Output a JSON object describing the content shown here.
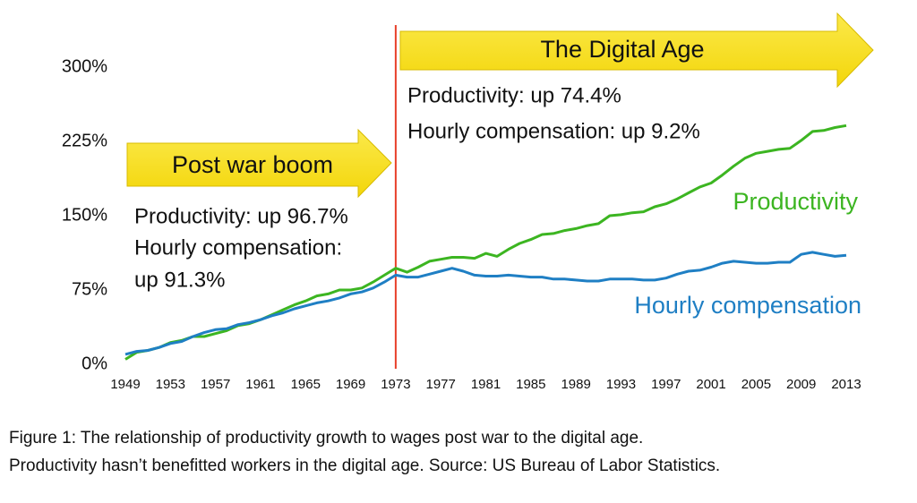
{
  "chart_data": {
    "type": "line",
    "x": [
      1949,
      1950,
      1951,
      1952,
      1953,
      1954,
      1955,
      1956,
      1957,
      1958,
      1959,
      1960,
      1961,
      1962,
      1963,
      1964,
      1965,
      1966,
      1967,
      1968,
      1969,
      1970,
      1971,
      1972,
      1973,
      1974,
      1975,
      1976,
      1977,
      1978,
      1979,
      1980,
      1981,
      1982,
      1983,
      1984,
      1985,
      1986,
      1987,
      1988,
      1989,
      1990,
      1991,
      1992,
      1993,
      1994,
      1995,
      1996,
      1997,
      1998,
      1999,
      2000,
      2001,
      2002,
      2003,
      2004,
      2005,
      2006,
      2007,
      2008,
      2009,
      2010,
      2011,
      2012,
      2013
    ],
    "series": [
      {
        "name": "Productivity",
        "color": "#3cb521",
        "values": [
          5,
          12,
          14,
          17,
          22,
          24,
          28,
          28,
          31,
          34,
          39,
          41,
          45,
          50,
          55,
          60,
          64,
          69,
          71,
          75,
          75,
          77,
          83,
          90,
          97,
          93,
          98,
          104,
          106,
          108,
          108,
          107,
          112,
          109,
          116,
          122,
          126,
          131,
          132,
          135,
          137,
          140,
          142,
          150,
          151,
          153,
          154,
          159,
          162,
          167,
          173,
          179,
          183,
          191,
          200,
          208,
          213,
          215,
          217,
          218,
          226,
          235,
          236,
          239,
          241
        ]
      },
      {
        "name": "Hourly compensation",
        "color": "#1f7fc4",
        "values": [
          10,
          13,
          14,
          17,
          21,
          23,
          28,
          32,
          35,
          36,
          40,
          42,
          45,
          49,
          52,
          56,
          59,
          62,
          64,
          67,
          71,
          73,
          77,
          83,
          90,
          88,
          88,
          91,
          94,
          97,
          94,
          90,
          89,
          89,
          90,
          89,
          88,
          88,
          86,
          86,
          85,
          84,
          84,
          86,
          86,
          86,
          85,
          85,
          87,
          91,
          94,
          95,
          98,
          102,
          104,
          103,
          102,
          102,
          103,
          103,
          111,
          113,
          111,
          109,
          110
        ]
      }
    ],
    "xlim": [
      1949,
      2013
    ],
    "xticks": [
      1949,
      1953,
      1957,
      1961,
      1965,
      1969,
      1973,
      1977,
      1981,
      1985,
      1989,
      1993,
      1997,
      2001,
      2005,
      2009,
      2013
    ],
    "ylim": [
      0,
      300
    ],
    "yticks": [
      {
        "value": 0,
        "label": "0%"
      },
      {
        "value": 75,
        "label": "75%"
      },
      {
        "value": 150,
        "label": "150%"
      },
      {
        "value": 225,
        "label": "225%"
      },
      {
        "value": 300,
        "label": "300%"
      }
    ],
    "vline": {
      "x": 1973,
      "color": "#e8402a"
    },
    "eras": [
      {
        "label": "Post war boom",
        "lines": [
          "Productivity: up 96.7%",
          "Hourly compensation:",
          "up 91.3%"
        ]
      },
      {
        "label": "The Digital Age",
        "lines": [
          "Productivity: up 74.4%",
          "Hourly compensation: up 9.2%"
        ]
      }
    ],
    "caption": [
      "Figure 1: The relationship of productivity growth to wages post war to the digital age.",
      "Productivity hasn’t benefitted workers in the digital age. Source: US Bureau of Labor Statistics."
    ]
  }
}
